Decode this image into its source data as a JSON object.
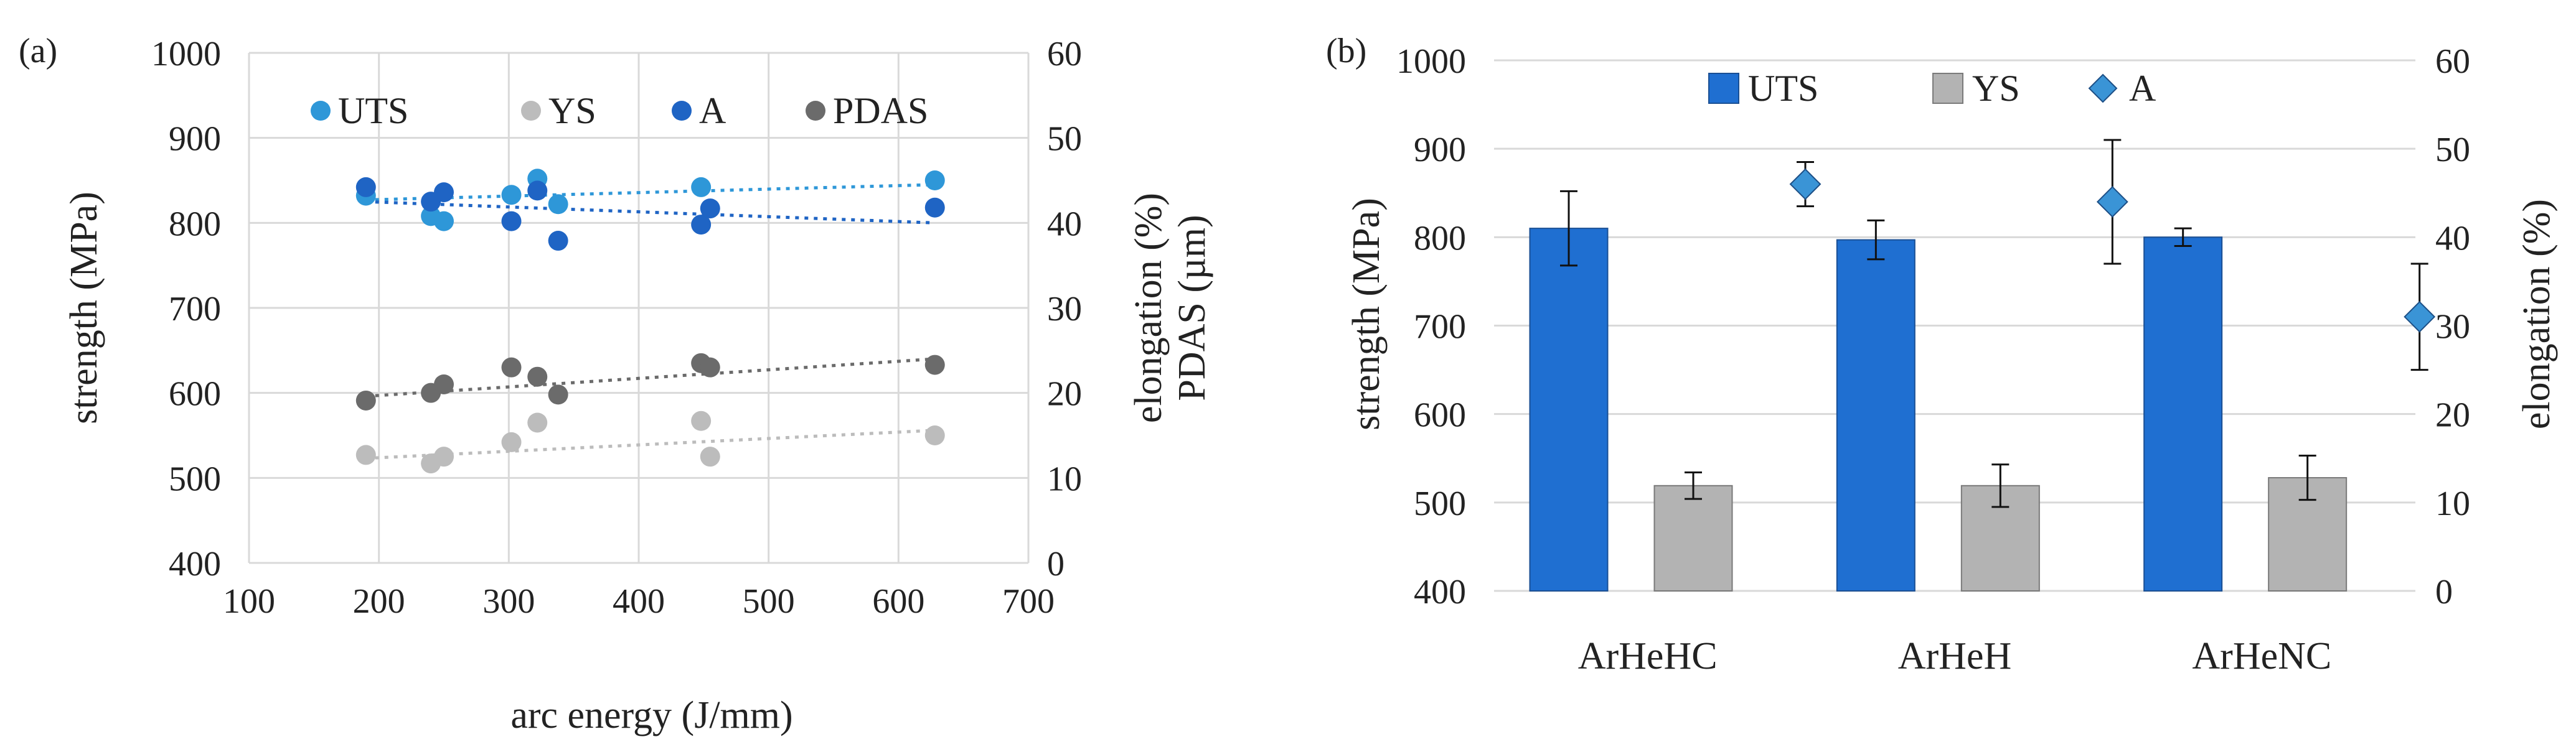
{
  "figure": {
    "panels": [
      "(a)",
      "(b)"
    ]
  },
  "chart_data": [
    {
      "type": "scatter",
      "panel_label": "(a)",
      "xlabel": "arc energy (J/mm)",
      "ylabel": "strength (MPa)",
      "y2label": "elongation (%)",
      "y2label_extra": "PDAS (µm)",
      "xlim": [
        100,
        700
      ],
      "xticks": [
        100,
        200,
        300,
        400,
        500,
        600,
        700
      ],
      "ylim": [
        400,
        1000
      ],
      "yticks": [
        400,
        500,
        600,
        700,
        800,
        900,
        1000
      ],
      "y2lim": [
        0,
        60
      ],
      "y2ticks": [
        0,
        10,
        20,
        30,
        40,
        50,
        60
      ],
      "grid": true,
      "legend_position": "top",
      "series": [
        {
          "name": "UTS",
          "axis": "left",
          "color": "#2e97d8",
          "x": [
            190,
            240,
            250,
            302,
            322,
            338,
            448,
            628
          ],
          "y": [
            832,
            808,
            802,
            833,
            852,
            822,
            842,
            850
          ],
          "trend": [
            [
              190,
              827
            ],
            [
              628,
              845
            ]
          ]
        },
        {
          "name": "YS",
          "axis": "left",
          "color": "#bcbcbc",
          "x": [
            190,
            240,
            250,
            302,
            322,
            448,
            455,
            628
          ],
          "y": [
            527,
            517,
            525,
            542,
            565,
            567,
            525,
            550
          ],
          "trend": [
            [
              190,
              523
            ],
            [
              628,
              556
            ]
          ]
        },
        {
          "name": "A",
          "axis": "right",
          "color": "#1f64c4",
          "x": [
            190,
            240,
            250,
            302,
            322,
            338,
            448,
            455,
            628
          ],
          "y": [
            44.2,
            42.5,
            43.6,
            40.2,
            43.8,
            37.9,
            39.8,
            41.7,
            41.8
          ],
          "trend": [
            [
              190,
              42.5
            ],
            [
              628,
              40.0
            ]
          ]
        },
        {
          "name": "PDAS",
          "axis": "right",
          "color": "#6b6b6b",
          "x": [
            190,
            240,
            250,
            302,
            322,
            338,
            448,
            455,
            628
          ],
          "y": [
            19.1,
            20.0,
            21.0,
            23.0,
            21.9,
            19.8,
            23.5,
            23.0,
            23.3
          ],
          "trend": [
            [
              190,
              19.6
            ],
            [
              628,
              24.0
            ]
          ]
        }
      ]
    },
    {
      "type": "bar",
      "panel_label": "(b)",
      "ylabel": "strength (MPa)",
      "y2label": "elongation (%)",
      "categories": [
        "ArHeHC",
        "ArHeH",
        "ArHeNC"
      ],
      "ylim": [
        400,
        1000
      ],
      "yticks": [
        400,
        500,
        600,
        700,
        800,
        900,
        1000
      ],
      "y2lim": [
        0,
        60
      ],
      "y2ticks": [
        0,
        10,
        20,
        30,
        40,
        50,
        60
      ],
      "grid": true,
      "legend_position": "top",
      "series": [
        {
          "name": "UTS",
          "kind": "bar",
          "axis": "left",
          "color": "#1f6fd1",
          "values": [
            810,
            797,
            800
          ],
          "errors": [
            42,
            22,
            10
          ]
        },
        {
          "name": "YS",
          "kind": "bar",
          "axis": "left",
          "color": "#b3b3b3",
          "values": [
            519,
            519,
            528
          ],
          "errors": [
            15,
            24,
            25
          ]
        },
        {
          "name": "A",
          "kind": "marker",
          "axis": "right",
          "color": "#3a94d6",
          "values": [
            46,
            44,
            31
          ],
          "errors": [
            2.5,
            7.0,
            6.0
          ]
        }
      ]
    }
  ]
}
